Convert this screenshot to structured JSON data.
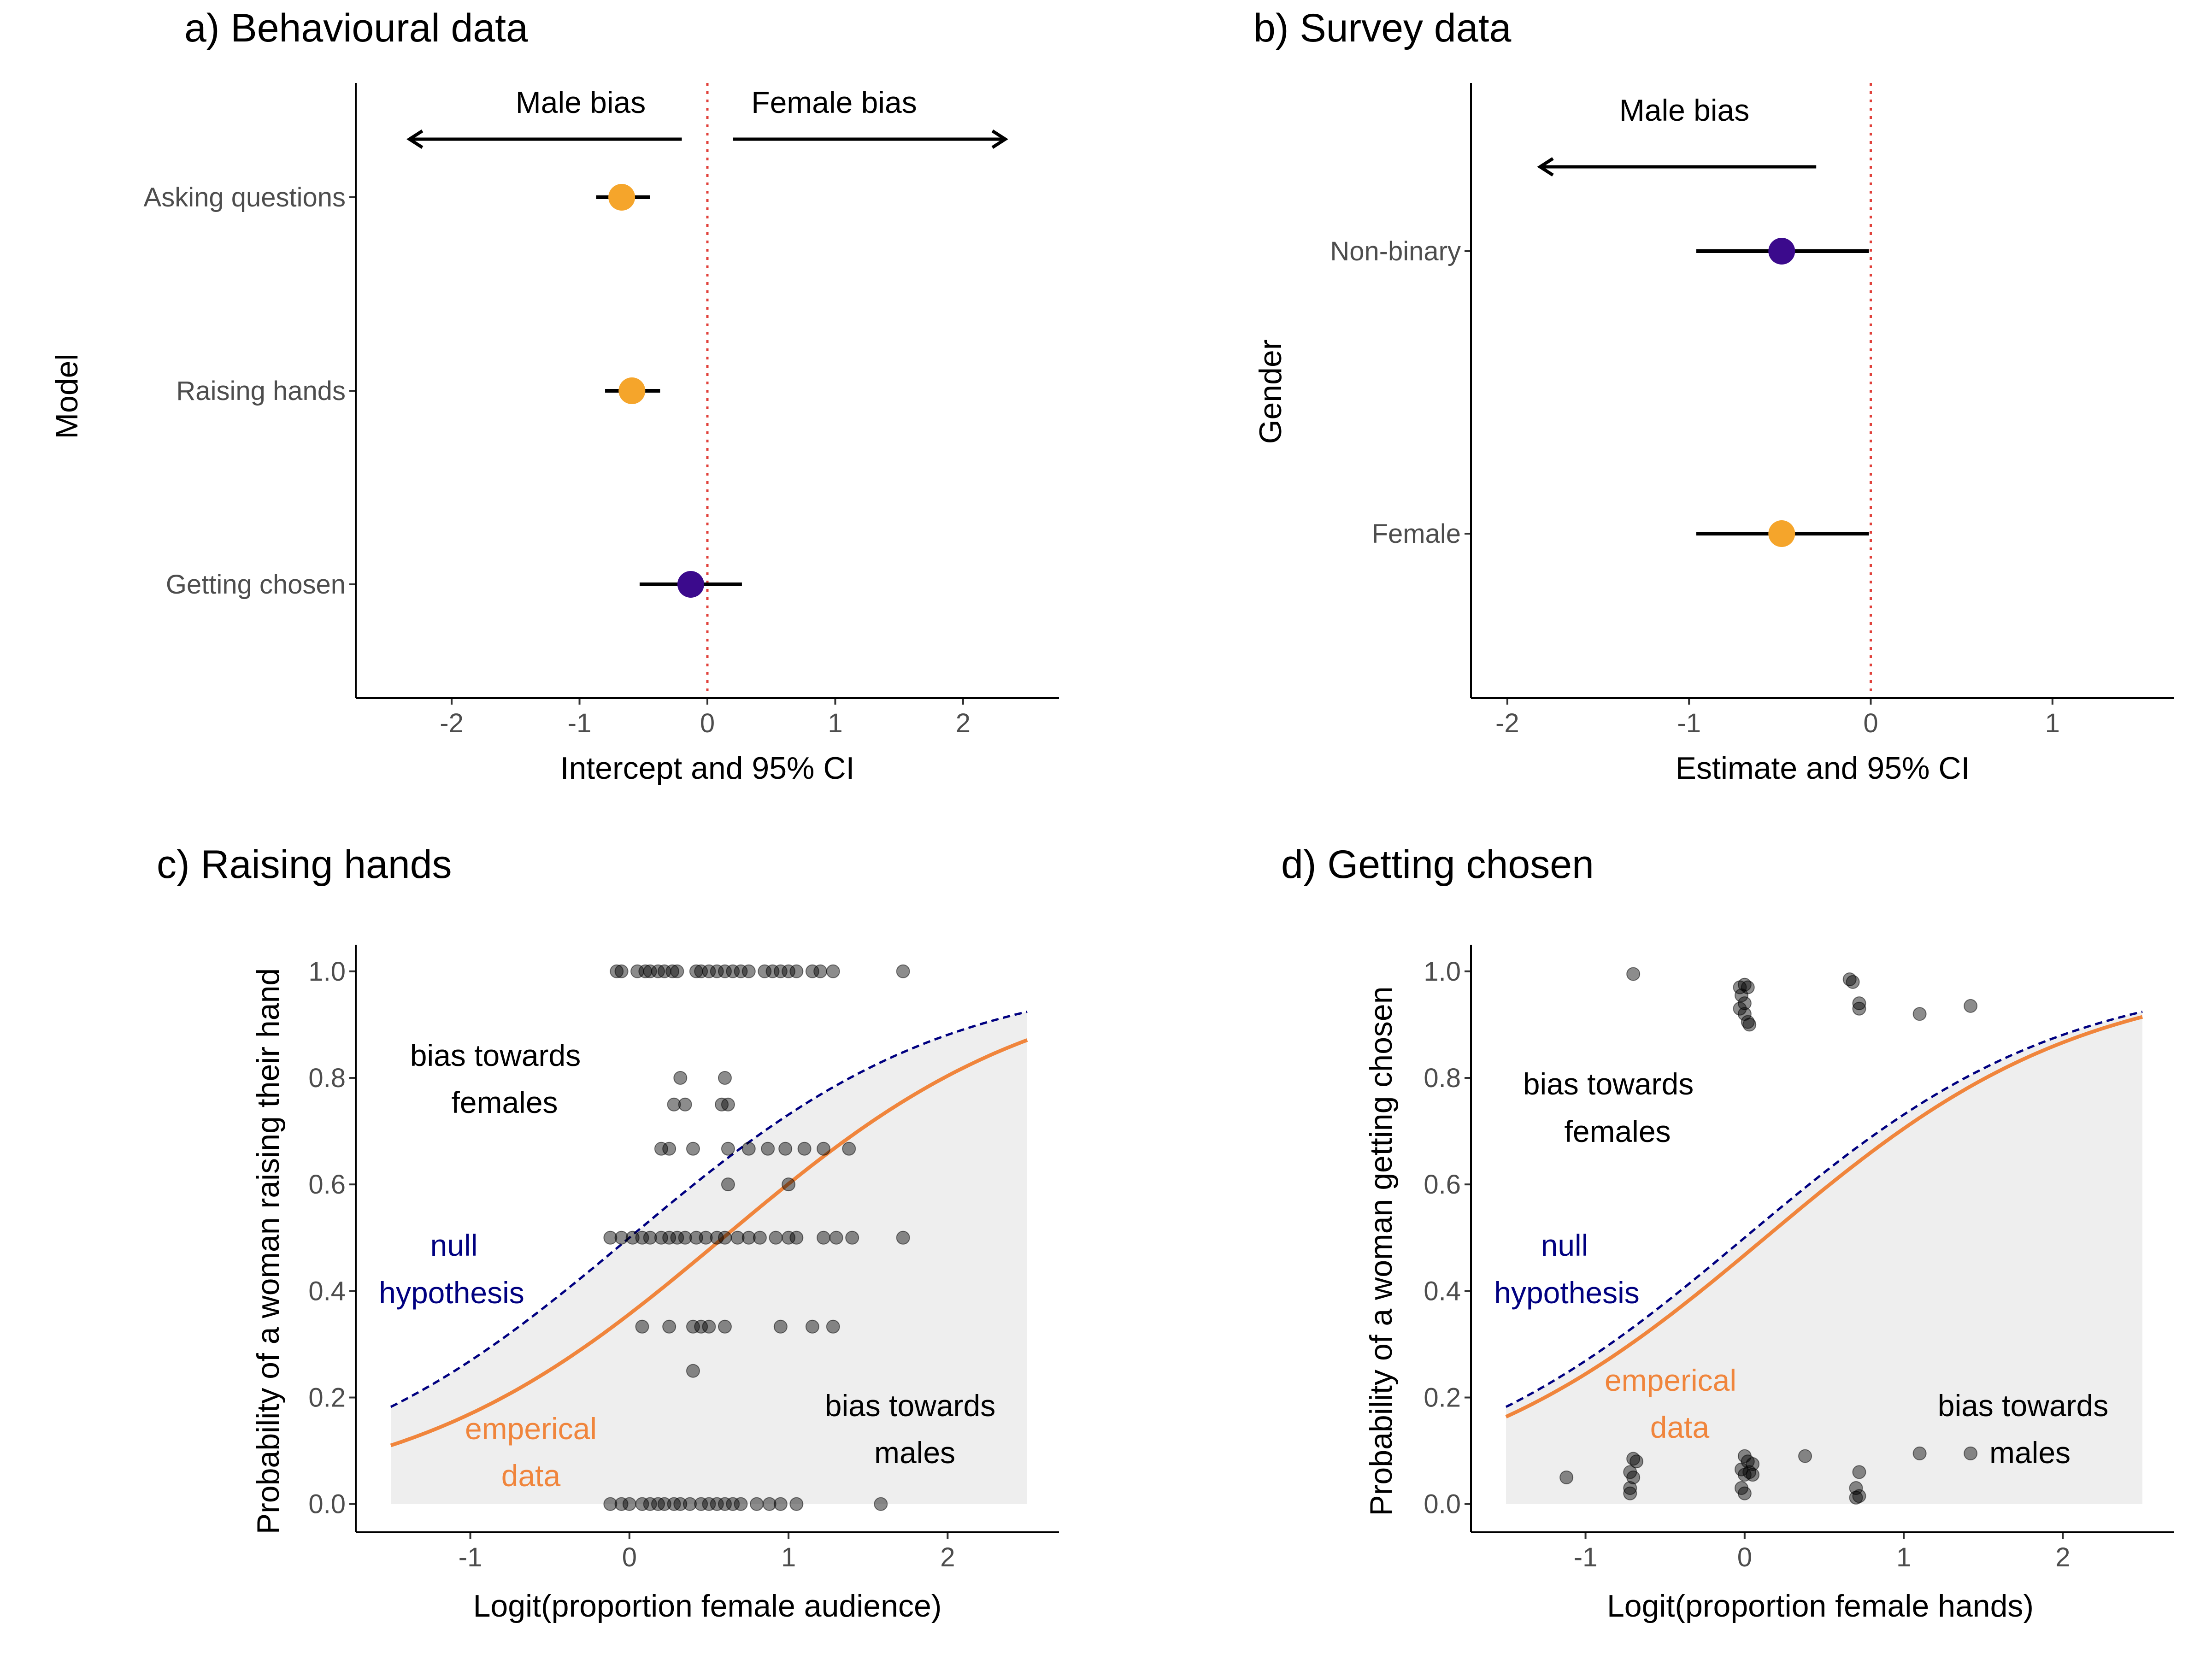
{
  "colors": {
    "orange_point": "#F5A52B",
    "purple_point": "#3B0A8C",
    "ref_line": "#E0403A",
    "empirical_curve": "#F0853C",
    "null_curve": "#000080",
    "shade": "#EEEEEE",
    "scatter": "#000000"
  },
  "chart_data": [
    {
      "type": "scatter",
      "panel_title": "a) Behavioural data",
      "xlabel": "Intercept and 95% CI",
      "ylabel": "Model",
      "xlim": [
        -2.75,
        2.75
      ],
      "xticks": [
        "-2",
        "-1",
        "0",
        "1",
        "2"
      ],
      "reference_line_x": 0,
      "annotations": {
        "left_arrow": "Male bias",
        "right_arrow": "Female bias"
      },
      "rows": [
        {
          "label": "Asking questions",
          "estimate": -0.67,
          "ci_low": -0.87,
          "ci_high": -0.45,
          "color": "orange"
        },
        {
          "label": "Raising hands",
          "estimate": -0.59,
          "ci_low": -0.8,
          "ci_high": -0.37,
          "color": "orange"
        },
        {
          "label": "Getting chosen",
          "estimate": -0.13,
          "ci_low": -0.53,
          "ci_high": 0.27,
          "color": "purple"
        }
      ]
    },
    {
      "type": "scatter",
      "panel_title": "b) Survey data",
      "xlabel": "Estimate and 95% CI",
      "ylabel": "Gender",
      "xlim": [
        -2.2,
        1.67
      ],
      "xticks": [
        "-2",
        "-1",
        "0",
        "1"
      ],
      "reference_line_x": 0,
      "annotations": {
        "left_arrow": "Male bias"
      },
      "rows": [
        {
          "label": "Non-binary",
          "estimate": -0.49,
          "ci_low": -0.96,
          "ci_high": -0.01,
          "color": "purple"
        },
        {
          "label": "Female",
          "estimate": -0.49,
          "ci_low": -0.96,
          "ci_high": -0.01,
          "color": "orange"
        }
      ]
    },
    {
      "type": "scatter",
      "panel_title": "c) Raising hands",
      "xlabel": "Logit(proportion female audience)",
      "ylabel": "Probability of a woman raising their hand",
      "xlim": [
        -1.72,
        2.7
      ],
      "ylim": [
        -0.053,
        1.05
      ],
      "xticks": [
        "-1",
        "0",
        "1",
        "2"
      ],
      "yticks": [
        "0.0",
        "0.2",
        "0.4",
        "0.6",
        "0.8",
        "1.0"
      ],
      "curve_x_range": [
        -1.5,
        2.5
      ],
      "null_intercept": 0.0,
      "empirical_intercept": -0.59,
      "annotations": {
        "top_left": [
          "bias towards",
          "females"
        ],
        "null_label": [
          "null",
          "hypothesis"
        ],
        "empirical_label": [
          "emperical",
          "data"
        ],
        "bottom_right": [
          "bias towards",
          "males"
        ]
      },
      "points": [
        [
          -0.08,
          1.0
        ],
        [
          -0.05,
          1.0
        ],
        [
          0.05,
          1.0
        ],
        [
          0.1,
          1.0
        ],
        [
          0.13,
          1.0
        ],
        [
          0.18,
          1.0
        ],
        [
          0.22,
          1.0
        ],
        [
          0.27,
          1.0
        ],
        [
          0.3,
          1.0
        ],
        [
          0.42,
          1.0
        ],
        [
          0.45,
          1.0
        ],
        [
          0.5,
          1.0
        ],
        [
          0.55,
          1.0
        ],
        [
          0.6,
          1.0
        ],
        [
          0.65,
          1.0
        ],
        [
          0.7,
          1.0
        ],
        [
          0.75,
          1.0
        ],
        [
          0.85,
          1.0
        ],
        [
          0.9,
          1.0
        ],
        [
          0.95,
          1.0
        ],
        [
          1.0,
          1.0
        ],
        [
          1.05,
          1.0
        ],
        [
          1.15,
          1.0
        ],
        [
          1.2,
          1.0
        ],
        [
          1.28,
          1.0
        ],
        [
          1.72,
          1.0
        ],
        [
          0.32,
          0.8
        ],
        [
          0.6,
          0.8
        ],
        [
          0.28,
          0.75
        ],
        [
          0.35,
          0.75
        ],
        [
          0.58,
          0.75
        ],
        [
          0.62,
          0.75
        ],
        [
          0.2,
          0.667
        ],
        [
          0.25,
          0.667
        ],
        [
          0.4,
          0.667
        ],
        [
          0.62,
          0.667
        ],
        [
          0.75,
          0.667
        ],
        [
          0.87,
          0.667
        ],
        [
          0.98,
          0.667
        ],
        [
          1.1,
          0.667
        ],
        [
          1.22,
          0.667
        ],
        [
          1.38,
          0.667
        ],
        [
          0.62,
          0.6
        ],
        [
          1.0,
          0.6
        ],
        [
          -0.12,
          0.5
        ],
        [
          -0.05,
          0.5
        ],
        [
          0.02,
          0.5
        ],
        [
          0.08,
          0.5
        ],
        [
          0.13,
          0.5
        ],
        [
          0.2,
          0.5
        ],
        [
          0.25,
          0.5
        ],
        [
          0.3,
          0.5
        ],
        [
          0.35,
          0.5
        ],
        [
          0.42,
          0.5
        ],
        [
          0.48,
          0.5
        ],
        [
          0.55,
          0.5
        ],
        [
          0.6,
          0.5
        ],
        [
          0.68,
          0.5
        ],
        [
          0.75,
          0.5
        ],
        [
          0.82,
          0.5
        ],
        [
          0.92,
          0.5
        ],
        [
          1.0,
          0.5
        ],
        [
          1.05,
          0.5
        ],
        [
          1.22,
          0.5
        ],
        [
          1.3,
          0.5
        ],
        [
          1.4,
          0.5
        ],
        [
          1.72,
          0.5
        ],
        [
          0.08,
          0.333
        ],
        [
          0.25,
          0.333
        ],
        [
          0.4,
          0.333
        ],
        [
          0.45,
          0.333
        ],
        [
          0.5,
          0.333
        ],
        [
          0.6,
          0.333
        ],
        [
          0.95,
          0.333
        ],
        [
          1.15,
          0.333
        ],
        [
          1.28,
          0.333
        ],
        [
          0.4,
          0.25
        ],
        [
          -0.12,
          0.0
        ],
        [
          -0.05,
          0.0
        ],
        [
          0.0,
          0.0
        ],
        [
          0.08,
          0.0
        ],
        [
          0.13,
          0.0
        ],
        [
          0.18,
          0.0
        ],
        [
          0.22,
          0.0
        ],
        [
          0.28,
          0.0
        ],
        [
          0.32,
          0.0
        ],
        [
          0.38,
          0.0
        ],
        [
          0.45,
          0.0
        ],
        [
          0.5,
          0.0
        ],
        [
          0.55,
          0.0
        ],
        [
          0.6,
          0.0
        ],
        [
          0.65,
          0.0
        ],
        [
          0.7,
          0.0
        ],
        [
          0.8,
          0.0
        ],
        [
          0.88,
          0.0
        ],
        [
          0.95,
          0.0
        ],
        [
          1.05,
          0.0
        ],
        [
          1.58,
          0.0
        ]
      ]
    },
    {
      "type": "scatter",
      "panel_title": "d) Getting chosen",
      "xlabel": "Logit(proportion female hands)",
      "ylabel": "Probability of a woman getting chosen",
      "xlim": [
        -1.72,
        2.7
      ],
      "ylim": [
        -0.053,
        1.05
      ],
      "xticks": [
        "-1",
        "0",
        "1",
        "2"
      ],
      "yticks": [
        "0.0",
        "0.2",
        "0.4",
        "0.6",
        "0.8",
        "1.0"
      ],
      "curve_x_range": [
        -1.5,
        2.5
      ],
      "null_intercept": 0.0,
      "empirical_intercept": -0.13,
      "annotations": {
        "top_left": [
          "bias towards",
          "females"
        ],
        "null_label": [
          "null",
          "hypothesis"
        ],
        "empirical_label": [
          "emperical",
          "data"
        ],
        "bottom_right": [
          "bias towards",
          "males"
        ]
      },
      "points": [
        [
          -0.7,
          0.995
        ],
        [
          -0.03,
          0.97
        ],
        [
          0.0,
          0.975
        ],
        [
          0.02,
          0.97
        ],
        [
          -0.02,
          0.955
        ],
        [
          0.0,
          0.94
        ],
        [
          -0.03,
          0.93
        ],
        [
          0.0,
          0.92
        ],
        [
          0.02,
          0.905
        ],
        [
          0.03,
          0.9
        ],
        [
          0.66,
          0.985
        ],
        [
          0.68,
          0.98
        ],
        [
          0.72,
          0.94
        ],
        [
          0.72,
          0.93
        ],
        [
          1.1,
          0.92
        ],
        [
          1.42,
          0.935
        ],
        [
          -1.12,
          0.05
        ],
        [
          -0.7,
          0.085
        ],
        [
          -0.68,
          0.08
        ],
        [
          -0.72,
          0.06
        ],
        [
          -0.7,
          0.05
        ],
        [
          -0.72,
          0.03
        ],
        [
          -0.72,
          0.02
        ],
        [
          0.0,
          0.09
        ],
        [
          0.02,
          0.08
        ],
        [
          0.05,
          0.075
        ],
        [
          -0.02,
          0.065
        ],
        [
          0.03,
          0.06
        ],
        [
          0.0,
          0.055
        ],
        [
          0.05,
          0.055
        ],
        [
          -0.02,
          0.03
        ],
        [
          0.0,
          0.02
        ],
        [
          0.38,
          0.09
        ],
        [
          0.72,
          0.06
        ],
        [
          0.7,
          0.03
        ],
        [
          0.72,
          0.015
        ],
        [
          0.7,
          0.012
        ],
        [
          1.1,
          0.095
        ],
        [
          1.42,
          0.095
        ]
      ]
    }
  ]
}
